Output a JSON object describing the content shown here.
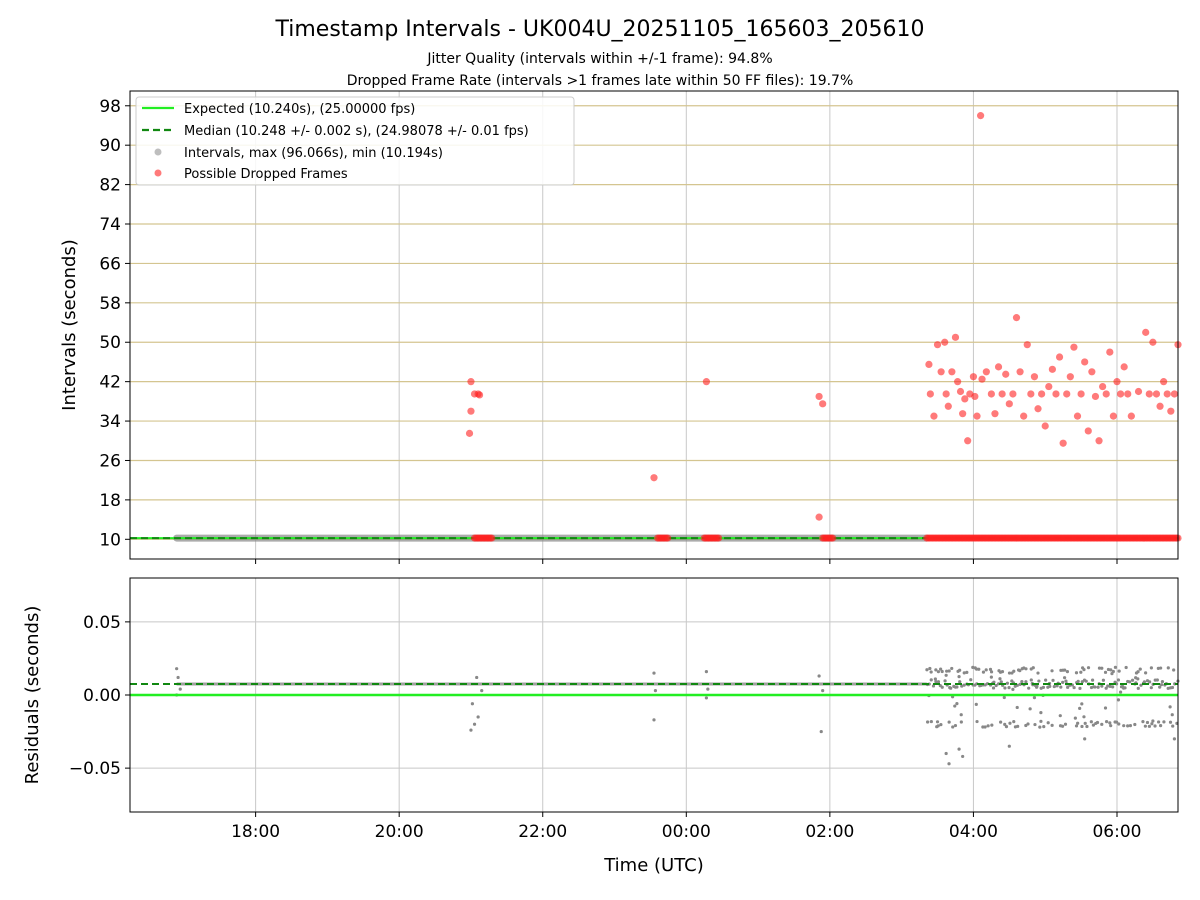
{
  "title": "Timestamp Intervals - UK004U_20251105_165603_205610",
  "subtitle_1": "Jitter Quality (intervals within +/-1 frame): 94.8%",
  "subtitle_2": "Dropped Frame Rate (intervals >1 frames late within 50 FF files): 19.7%",
  "colors": {
    "expected": "#22ee22",
    "median": "#118811",
    "intervals": "#888888",
    "dropped": "#ff2222",
    "hgrid_top": "#d4c590",
    "grid": "#c8c8c8"
  },
  "chart_data": [
    {
      "type": "scatter",
      "panel": "intervals",
      "xlabel": "",
      "ylabel": "Intervals (seconds)",
      "xlim_hours": [
        16.25,
        30.85
      ],
      "ylim": [
        6,
        101
      ],
      "yticks": [
        10,
        18,
        26,
        34,
        42,
        50,
        58,
        66,
        74,
        82,
        90,
        98
      ],
      "ytick_labels": [
        "10",
        "18",
        "26",
        "34",
        "42",
        "50",
        "58",
        "66",
        "74",
        "82",
        "90",
        "98"
      ],
      "expected_value": 10.24,
      "median_value": 10.248,
      "legend": {
        "position": "top-left",
        "entries": [
          "Expected (10.240s), (25.00000 fps)",
          "Median (10.248 +/- 0.002 s), (24.98078 +/- 0.01 fps)",
          "Intervals, max (96.066s), min (10.194s)",
          "Possible Dropped Frames"
        ]
      },
      "baseline_segments": [
        [
          16.9,
          27.35
        ]
      ],
      "dropped_baseline_runs": [
        [
          21.05,
          21.3
        ],
        [
          23.6,
          23.75
        ],
        [
          24.25,
          24.45
        ],
        [
          25.9,
          26.05
        ],
        [
          27.35,
          30.85
        ]
      ],
      "dropped_points": [
        {
          "t": 21.0,
          "y": 42.0
        },
        {
          "t": 21.05,
          "y": 39.5
        },
        {
          "t": 21.1,
          "y": 39.5
        },
        {
          "t": 21.12,
          "y": 39.3
        },
        {
          "t": 21.0,
          "y": 36.0
        },
        {
          "t": 20.98,
          "y": 31.5
        },
        {
          "t": 23.55,
          "y": 22.5
        },
        {
          "t": 24.28,
          "y": 42.0
        },
        {
          "t": 25.85,
          "y": 39.0
        },
        {
          "t": 25.9,
          "y": 37.5
        },
        {
          "t": 25.85,
          "y": 14.5
        },
        {
          "t": 27.38,
          "y": 45.5
        },
        {
          "t": 27.4,
          "y": 39.5
        },
        {
          "t": 27.45,
          "y": 35.0
        },
        {
          "t": 27.5,
          "y": 49.5
        },
        {
          "t": 27.55,
          "y": 44.0
        },
        {
          "t": 27.6,
          "y": 50.0
        },
        {
          "t": 27.62,
          "y": 39.5
        },
        {
          "t": 27.65,
          "y": 37.0
        },
        {
          "t": 27.7,
          "y": 44.0
        },
        {
          "t": 27.75,
          "y": 51.0
        },
        {
          "t": 27.78,
          "y": 42.0
        },
        {
          "t": 27.82,
          "y": 40.0
        },
        {
          "t": 27.85,
          "y": 35.5
        },
        {
          "t": 27.88,
          "y": 38.5
        },
        {
          "t": 27.92,
          "y": 30.0
        },
        {
          "t": 27.95,
          "y": 39.5
        },
        {
          "t": 28.0,
          "y": 43.0
        },
        {
          "t": 28.02,
          "y": 39.0
        },
        {
          "t": 28.05,
          "y": 35.0
        },
        {
          "t": 28.1,
          "y": 96.0
        },
        {
          "t": 28.12,
          "y": 42.5
        },
        {
          "t": 28.18,
          "y": 44.0
        },
        {
          "t": 28.25,
          "y": 39.5
        },
        {
          "t": 28.3,
          "y": 35.5
        },
        {
          "t": 28.35,
          "y": 45.0
        },
        {
          "t": 28.4,
          "y": 39.5
        },
        {
          "t": 28.45,
          "y": 43.5
        },
        {
          "t": 28.5,
          "y": 37.5
        },
        {
          "t": 28.55,
          "y": 39.5
        },
        {
          "t": 28.6,
          "y": 55.0
        },
        {
          "t": 28.65,
          "y": 44.0
        },
        {
          "t": 28.7,
          "y": 35.0
        },
        {
          "t": 28.75,
          "y": 49.5
        },
        {
          "t": 28.8,
          "y": 39.5
        },
        {
          "t": 28.85,
          "y": 43.0
        },
        {
          "t": 28.9,
          "y": 36.5
        },
        {
          "t": 28.95,
          "y": 39.5
        },
        {
          "t": 29.0,
          "y": 33.0
        },
        {
          "t": 29.05,
          "y": 41.0
        },
        {
          "t": 29.1,
          "y": 44.5
        },
        {
          "t": 29.15,
          "y": 39.5
        },
        {
          "t": 29.2,
          "y": 47.0
        },
        {
          "t": 29.25,
          "y": 29.5
        },
        {
          "t": 29.3,
          "y": 39.5
        },
        {
          "t": 29.35,
          "y": 43.0
        },
        {
          "t": 29.4,
          "y": 49.0
        },
        {
          "t": 29.45,
          "y": 35.0
        },
        {
          "t": 29.5,
          "y": 39.5
        },
        {
          "t": 29.55,
          "y": 46.0
        },
        {
          "t": 29.6,
          "y": 32.0
        },
        {
          "t": 29.65,
          "y": 44.0
        },
        {
          "t": 29.7,
          "y": 39.0
        },
        {
          "t": 29.75,
          "y": 30.0
        },
        {
          "t": 29.8,
          "y": 41.0
        },
        {
          "t": 29.85,
          "y": 39.5
        },
        {
          "t": 29.9,
          "y": 48.0
        },
        {
          "t": 29.95,
          "y": 35.0
        },
        {
          "t": 30.0,
          "y": 42.0
        },
        {
          "t": 30.05,
          "y": 39.5
        },
        {
          "t": 30.1,
          "y": 45.0
        },
        {
          "t": 30.15,
          "y": 39.5
        },
        {
          "t": 30.2,
          "y": 35.0
        },
        {
          "t": 30.3,
          "y": 40.0
        },
        {
          "t": 30.4,
          "y": 52.0
        },
        {
          "t": 30.45,
          "y": 39.5
        },
        {
          "t": 30.5,
          "y": 50.0
        },
        {
          "t": 30.55,
          "y": 39.5
        },
        {
          "t": 30.6,
          "y": 37.0
        },
        {
          "t": 30.65,
          "y": 42.0
        },
        {
          "t": 30.7,
          "y": 39.5
        },
        {
          "t": 30.75,
          "y": 36.0
        },
        {
          "t": 30.8,
          "y": 39.5
        },
        {
          "t": 30.85,
          "y": 49.5
        }
      ]
    },
    {
      "type": "scatter",
      "panel": "residuals",
      "xlabel": "Time (UTC)",
      "ylabel": "Residuals (seconds)",
      "xlim_hours": [
        16.25,
        30.85
      ],
      "ylim": [
        -0.08,
        0.08
      ],
      "yticks": [
        -0.05,
        0.0,
        0.05
      ],
      "ytick_labels": [
        "−0.05",
        "0.00",
        "0.05"
      ],
      "xticks_hours": [
        18,
        20,
        22,
        24,
        26,
        28,
        30
      ],
      "xtick_labels": [
        "18:00",
        "20:00",
        "22:00",
        "00:00",
        "02:00",
        "04:00",
        "06:00"
      ],
      "expected_value": 0.0,
      "median_value": 0.0075,
      "baseline_residual": 0.0075,
      "cluster_points": [
        {
          "t": 16.9,
          "y": 0.018
        },
        {
          "t": 16.92,
          "y": 0.012
        },
        {
          "t": 16.95,
          "y": 0.004
        },
        {
          "t": 16.9,
          "y": 0.0
        },
        {
          "t": 21.0,
          "y": -0.024
        },
        {
          "t": 21.05,
          "y": -0.02
        },
        {
          "t": 21.1,
          "y": -0.015
        },
        {
          "t": 21.02,
          "y": -0.006
        },
        {
          "t": 21.08,
          "y": 0.012
        },
        {
          "t": 21.15,
          "y": 0.003
        },
        {
          "t": 23.55,
          "y": 0.015
        },
        {
          "t": 23.57,
          "y": 0.003
        },
        {
          "t": 23.55,
          "y": -0.017
        },
        {
          "t": 24.28,
          "y": 0.016
        },
        {
          "t": 24.3,
          "y": 0.004
        },
        {
          "t": 24.28,
          "y": -0.002
        },
        {
          "t": 25.85,
          "y": 0.013
        },
        {
          "t": 25.9,
          "y": 0.003
        },
        {
          "t": 25.88,
          "y": -0.025
        }
      ]
    }
  ]
}
